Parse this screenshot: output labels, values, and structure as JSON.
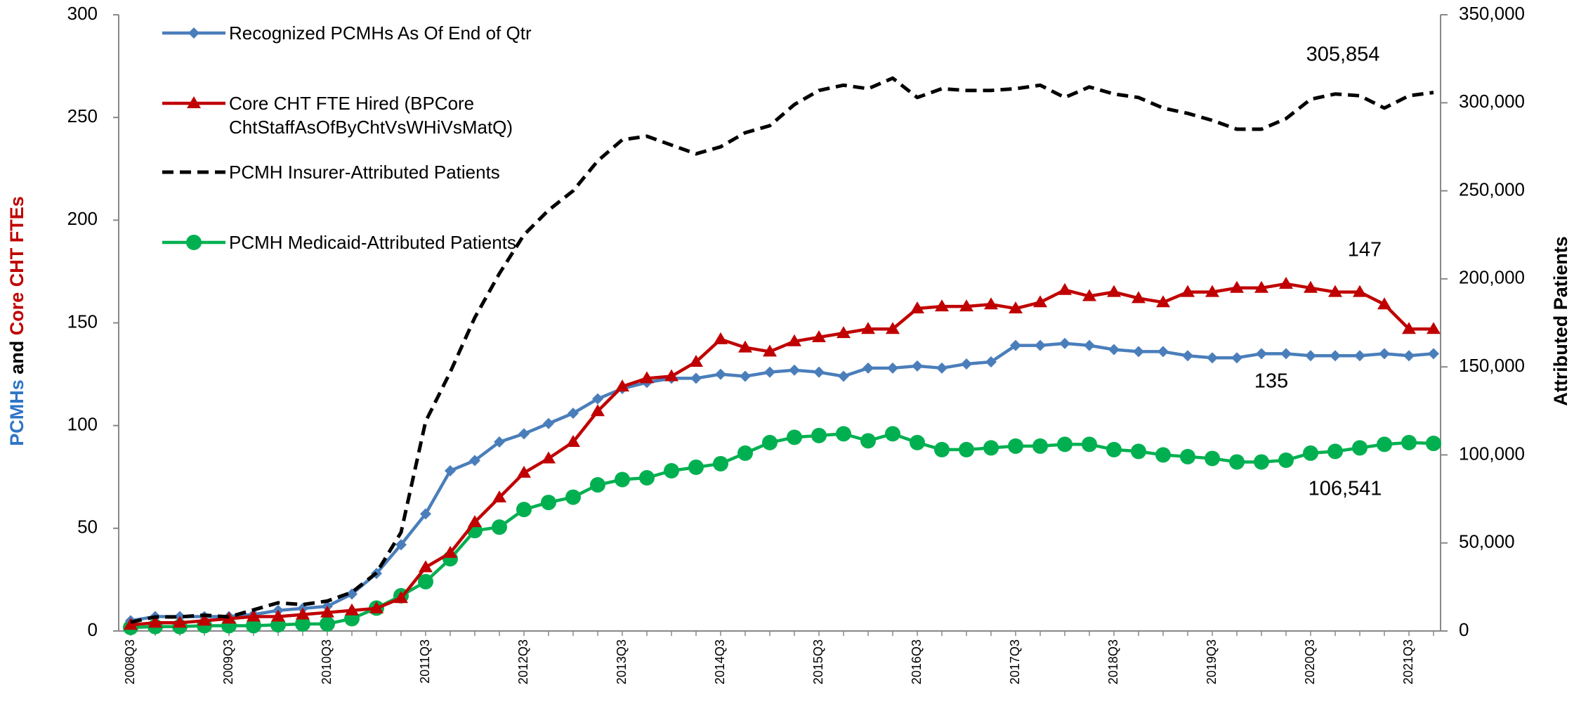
{
  "chart_data": {
    "type": "line",
    "y_label_parts": [
      {
        "text": "PCMHs",
        "color": "#2e75c7"
      },
      {
        "text": "and",
        "color": "#000000"
      },
      {
        "text": "Core CHT FTEs",
        "color": "#c00000"
      }
    ],
    "y2_label": "Attributed Patients",
    "categories": [
      "2008Q3",
      null,
      null,
      null,
      "2009Q3",
      null,
      null,
      null,
      "2010Q3",
      null,
      null,
      null,
      "2011Q3",
      null,
      null,
      null,
      "2012Q3",
      null,
      null,
      null,
      "2013Q3",
      null,
      null,
      null,
      "2014Q3",
      null,
      null,
      null,
      "2015Q3",
      null,
      null,
      null,
      "2016Q3",
      null,
      null,
      null,
      "2017Q3",
      null,
      null,
      null,
      "2018Q3",
      null,
      null,
      null,
      "2019Q3",
      null,
      null,
      null,
      "2020Q3",
      null,
      null,
      null,
      "2021Q3",
      null
    ],
    "ylim": [
      0,
      300
    ],
    "yticks": [
      0,
      50,
      100,
      150,
      200,
      250,
      300
    ],
    "y2lim": [
      0,
      350000
    ],
    "y2ticks": [
      {
        "value": 0,
        "label": "0"
      },
      {
        "value": 50000,
        "label": "50,000"
      },
      {
        "value": 100000,
        "label": "100,000"
      },
      {
        "value": 150000,
        "label": "150,000"
      },
      {
        "value": 200000,
        "label": "200,000"
      },
      {
        "value": 250000,
        "label": "250,000"
      },
      {
        "value": 300000,
        "label": "300,000"
      },
      {
        "value": 350000,
        "label": "350,000"
      }
    ],
    "series": [
      {
        "name": "Recognized PCMHs As Of End of Qtr",
        "color": "#4a7ebb",
        "marker": "diamond",
        "end_label": "135",
        "values": [
          5,
          7,
          7,
          7,
          7,
          8,
          10,
          11,
          12,
          18,
          28,
          42,
          57,
          78,
          83,
          92,
          96,
          101,
          106,
          113,
          118,
          121,
          123,
          123,
          125,
          124,
          126,
          127,
          126,
          124,
          128,
          128,
          129,
          128,
          130,
          131,
          139,
          139,
          140,
          139,
          137,
          136,
          136,
          134,
          133,
          133,
          135,
          135,
          134,
          134,
          134,
          135,
          134,
          135
        ]
      },
      {
        "name": "Core CHT FTE Hired (BPCore ChtStaffAsOfByChtVsWHiVsMatQ)",
        "color": "#c00000",
        "marker": "triangle",
        "end_label": "147",
        "values": [
          3,
          4,
          4,
          5,
          6,
          7,
          7,
          8,
          9,
          10,
          11,
          16,
          31,
          38,
          53,
          65,
          77,
          84,
          92,
          107,
          119,
          123,
          124,
          131,
          142,
          138,
          136,
          141,
          143,
          145,
          147,
          147,
          157,
          158,
          158,
          159,
          157,
          160,
          166,
          163,
          165,
          162,
          160,
          165,
          165,
          167,
          167,
          169,
          167,
          165,
          165,
          159,
          147,
          147
        ]
      },
      {
        "name": "PCMH Insurer-Attributed Patients",
        "color": "#000000",
        "marker": "none",
        "dashed": true,
        "axis": "y2",
        "end_label": "305,854",
        "values": [
          5000,
          8000,
          8000,
          9000,
          8000,
          12000,
          16000,
          15000,
          17000,
          22000,
          33000,
          56000,
          119000,
          147000,
          178000,
          203000,
          225000,
          239000,
          250000,
          267000,
          279000,
          281000,
          276000,
          271000,
          275000,
          283000,
          287000,
          299000,
          307000,
          310000,
          308000,
          314000,
          303000,
          308000,
          307000,
          307000,
          308000,
          310000,
          303000,
          309000,
          305000,
          303000,
          297000,
          294000,
          290000,
          285000,
          285000,
          291000,
          302000,
          305000,
          304000,
          297000,
          304000,
          305854
        ]
      },
      {
        "name": "PCMH Medicaid-Attributed Patients",
        "color": "#00b050",
        "marker": "circle",
        "axis": "y2",
        "end_label": "106,541",
        "values": [
          2000,
          2500,
          2500,
          3000,
          3000,
          3000,
          3500,
          4000,
          4000,
          7000,
          13000,
          20000,
          28000,
          41000,
          57000,
          59000,
          69000,
          73000,
          76000,
          83000,
          86000,
          87000,
          91000,
          93000,
          95000,
          101000,
          107000,
          110000,
          111000,
          112000,
          108000,
          112000,
          107000,
          103000,
          103000,
          104000,
          105000,
          105000,
          106000,
          106000,
          103000,
          102000,
          100000,
          99000,
          98000,
          96000,
          96000,
          97000,
          101000,
          102000,
          104000,
          106000,
          107000,
          106541
        ]
      }
    ]
  }
}
